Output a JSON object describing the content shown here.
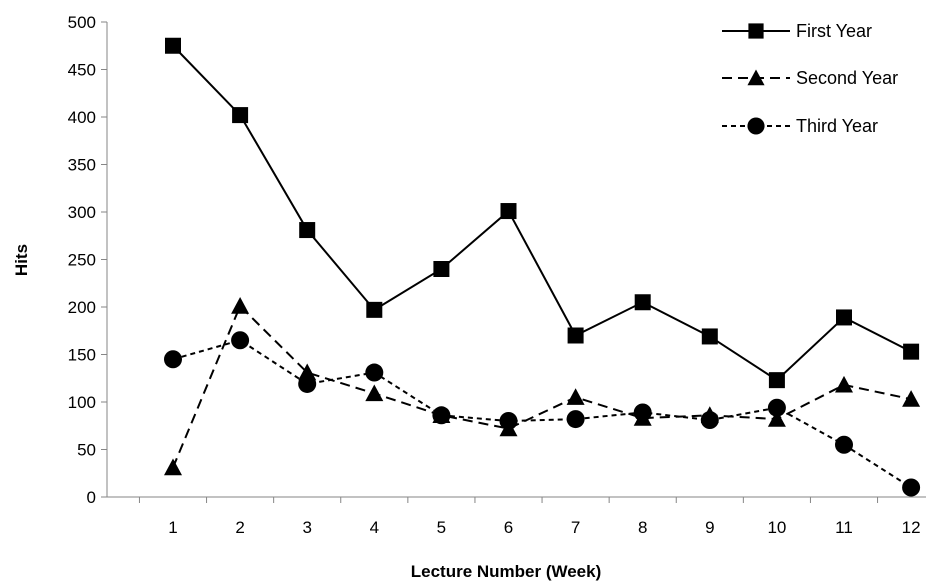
{
  "chart_data": {
    "type": "line",
    "xlabel": "Lecture Number (Week)",
    "ylabel": "Hits",
    "ylim": [
      0,
      500
    ],
    "yticks": [
      0,
      50,
      100,
      150,
      200,
      250,
      300,
      350,
      400,
      450,
      500
    ],
    "categories": [
      "1",
      "2",
      "3",
      "4",
      "5",
      "6",
      "7",
      "8",
      "9",
      "10",
      "11",
      "12"
    ],
    "grid": false,
    "legend_position": "top-right",
    "series": [
      {
        "name": "First Year",
        "marker": "square",
        "line_style": "solid",
        "values": [
          475,
          402,
          281,
          197,
          240,
          301,
          170,
          205,
          169,
          123,
          189,
          153
        ]
      },
      {
        "name": "Second Year",
        "marker": "triangle",
        "line_style": "dashed",
        "values": [
          31,
          201,
          131,
          109,
          86,
          72,
          105,
          83,
          86,
          82,
          118,
          103
        ]
      },
      {
        "name": "Third Year",
        "marker": "circle",
        "line_style": "dotted",
        "values": [
          145,
          165,
          119,
          131,
          86,
          80,
          82,
          89,
          81,
          94,
          55,
          10
        ]
      }
    ]
  }
}
